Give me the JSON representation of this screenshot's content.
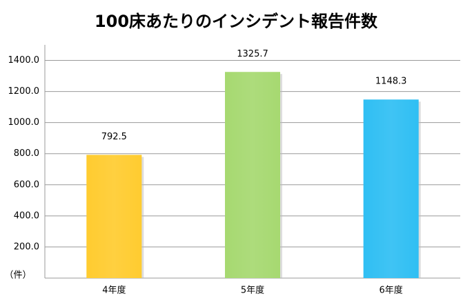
{
  "chart_data": {
    "type": "bar",
    "title": "100床あたりのインシデント報告件数",
    "y_label": "（件）",
    "categories": [
      "4年度",
      "5年度",
      "6年度"
    ],
    "values": [
      792.5,
      1325.7,
      1148.3
    ],
    "colors": [
      "#ffc000",
      "#92d050",
      "#00b0f0"
    ],
    "ylim": [
      0,
      1500
    ],
    "yticks": [
      {
        "value": 200,
        "label": "200.0"
      },
      {
        "value": 400,
        "label": "400.0"
      },
      {
        "value": 600,
        "label": "600.0"
      },
      {
        "value": 800,
        "label": "800.0"
      },
      {
        "value": 1000,
        "label": "1000.0"
      },
      {
        "value": 1200,
        "label": "1200.0"
      },
      {
        "value": 1400,
        "label": "1400.0"
      }
    ],
    "grid": true
  }
}
